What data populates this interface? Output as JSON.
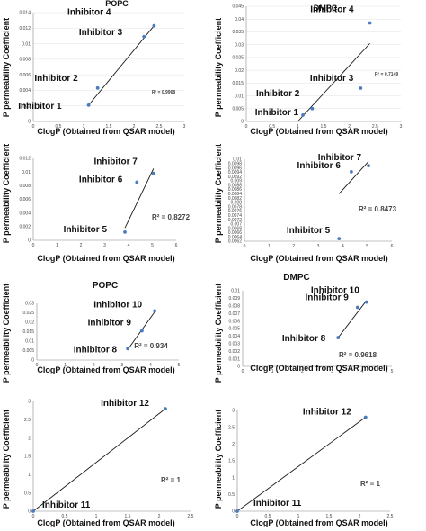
{
  "chart_data": [
    {
      "type": "scatter",
      "title": "POPC",
      "xlabel": "ClogP (Obtained from QSAR model)",
      "ylabel": "P permeability Coefficient",
      "xlim": [
        0,
        3
      ],
      "ylim": [
        0,
        0.014
      ],
      "xticks": [
        "0",
        "0.5",
        "1",
        "1.5",
        "2",
        "2.5",
        "3"
      ],
      "yticks": [
        "0",
        "0.002",
        "0.004",
        "0.006",
        "0.008",
        "0.01",
        "0.012",
        "0.014"
      ],
      "grid": "horizontal",
      "points": [
        {
          "label": "Inhibitor 1",
          "x": 1.1,
          "y": 0.0021
        },
        {
          "label": "Inhibitor 2",
          "x": 1.28,
          "y": 0.0043
        },
        {
          "label": "Inhibitor 3",
          "x": 2.2,
          "y": 0.0109
        },
        {
          "label": "Inhibitor 4",
          "x": 2.4,
          "y": 0.0123
        }
      ],
      "trendline": {
        "x": [
          1.1,
          2.4
        ],
        "y": [
          0.0021,
          0.0123
        ]
      },
      "r2_text": "R² = 0.9968"
    },
    {
      "type": "scatter",
      "title": "DMPC",
      "xlabel": "ClogP (Obtained from QSAR model)",
      "ylabel": "P permeability Coefficient",
      "xlim": [
        0,
        3
      ],
      "ylim": [
        0,
        0.045
      ],
      "xticks": [
        "0",
        "0.5",
        "1",
        "1.5",
        "2",
        "2.5",
        "3"
      ],
      "yticks": [
        "0",
        "0.005",
        "0.01",
        "0.015",
        "0.02",
        "0.025",
        "0.03",
        "0.035",
        "0.04",
        "0.045"
      ],
      "grid": "horizontal",
      "points": [
        {
          "label": "Inhibitor 1",
          "x": 1.1,
          "y": 0.0025
        },
        {
          "label": "Inhibitor 2",
          "x": 1.28,
          "y": 0.005
        },
        {
          "label": "Inhibitor 3",
          "x": 2.22,
          "y": 0.013
        },
        {
          "label": "Inhibitor 4",
          "x": 2.4,
          "y": 0.0385
        }
      ],
      "trendline": {
        "x": [
          1.0,
          2.4
        ],
        "y": [
          0.0,
          0.0305
        ]
      },
      "r2_text": "R² = 0.7149"
    },
    {
      "type": "scatter",
      "title": "",
      "xlabel": "ClogP (Obtained from QSAR model)",
      "ylabel": "P permeability Coefficient",
      "xlim": [
        0,
        6
      ],
      "ylim": [
        0,
        0.012
      ],
      "xticks": [
        "0",
        "1",
        "2",
        "3",
        "4",
        "5",
        "6"
      ],
      "yticks": [
        "0",
        "0.002",
        "0.004",
        "0.006",
        "0.008",
        "0.01",
        "0.012"
      ],
      "grid": "none",
      "points": [
        {
          "label": "Inhibitor 5",
          "x": 3.85,
          "y": 0.0012
        },
        {
          "label": "Inhibitor 6",
          "x": 4.35,
          "y": 0.0085
        },
        {
          "label": "Inhibitor 7",
          "x": 5.05,
          "y": 0.0098
        }
      ],
      "trendline": {
        "x": [
          3.85,
          5.05
        ],
        "y": [
          0.0018,
          0.0105
        ]
      },
      "r2_text": "R² = 0.8272"
    },
    {
      "type": "scatter",
      "title": "",
      "xlabel": "ClogP (Obtained from QSAR model)",
      "ylabel": "P permeability Coefficient",
      "xlim": [
        0,
        6
      ],
      "ylim": [
        0.0062,
        0.01
      ],
      "xticks": [
        "0",
        "1",
        "2",
        "3",
        "4",
        "5",
        "6"
      ],
      "yticks": [
        "0.0062",
        "0.0064",
        "0.0066",
        "0.0068",
        "0.007",
        "0.0072",
        "0.0074",
        "0.0076",
        "0.0078",
        "0.008",
        "0.0082",
        "0.0084",
        "0.0086",
        "0.0088",
        "0.009",
        "0.0092",
        "0.0094",
        "0.0096",
        "0.0098",
        "0.01"
      ],
      "grid": "none",
      "points": [
        {
          "label": "Inhibitor 5",
          "x": 3.85,
          "y": 0.00632
        },
        {
          "label": "Inhibitor 6",
          "x": 4.35,
          "y": 0.00942
        },
        {
          "label": "Inhibitor 7",
          "x": 5.05,
          "y": 0.0097
        }
      ],
      "trendline": {
        "x": [
          3.85,
          5.05
        ],
        "y": [
          0.0084,
          0.0099
        ]
      },
      "r2_text": "R² = 0.8473"
    },
    {
      "type": "scatter",
      "title": "POPC",
      "xlabel": "ClogP (Obtained from QSAR model)",
      "ylabel": "P permeability Coefficient",
      "xlim": [
        0,
        5
      ],
      "ylim": [
        0,
        0.03
      ],
      "xticks": [
        "0",
        "1",
        "2",
        "3",
        "4",
        "5"
      ],
      "yticks": [
        "0",
        "0.005",
        "0.01",
        "0.015",
        "0.02",
        "0.025",
        "0.03"
      ],
      "grid": "none",
      "points": [
        {
          "label": "Inhibitor 8",
          "x": 3.2,
          "y": 0.006
        },
        {
          "label": "Inhibitor 9",
          "x": 3.7,
          "y": 0.0155
        },
        {
          "label": "Inhibitor 10",
          "x": 4.15,
          "y": 0.026
        }
      ],
      "trendline": {
        "x": [
          3.2,
          4.15
        ],
        "y": [
          0.0055,
          0.0255
        ]
      },
      "r2_text": "R² = 0.934"
    },
    {
      "type": "scatter",
      "title": "DMPC",
      "xlabel": "ClogP (Obtained from QSAR model)",
      "ylabel": "P permeability Coefficient",
      "xlim": [
        0,
        5
      ],
      "ylim": [
        0,
        0.01
      ],
      "xticks": [
        "0",
        "1",
        "2",
        "3",
        "4",
        "5"
      ],
      "yticks": [
        "0",
        "0.001",
        "0.002",
        "0.003",
        "0.004",
        "0.005",
        "0.006",
        "0.007",
        "0.008",
        "0.009",
        "0.01"
      ],
      "grid": "none",
      "points": [
        {
          "label": "Inhibitor 8",
          "x": 3.2,
          "y": 0.0038
        },
        {
          "label": "Inhibitor 9",
          "x": 3.85,
          "y": 0.0078
        },
        {
          "label": "Inhibitor 10",
          "x": 4.15,
          "y": 0.0085
        }
      ],
      "trendline": {
        "x": [
          3.2,
          4.15
        ],
        "y": [
          0.0038,
          0.0087
        ]
      },
      "r2_text": "R² = 0.9618"
    },
    {
      "type": "scatter",
      "title": "",
      "xlabel": "ClogP (Obtained from QSAR model)",
      "ylabel": "P permeability Coefficient",
      "xlim": [
        0,
        2.5
      ],
      "ylim": [
        0,
        3
      ],
      "xticks": [
        "0",
        "0.5",
        "1",
        "1.5",
        "2",
        "2.5"
      ],
      "yticks": [
        "0",
        "0.5",
        "1",
        "1.5",
        "2",
        "2.5",
        "3"
      ],
      "grid": "none",
      "points": [
        {
          "label": "Inhibitor 11",
          "x": 0.0,
          "y": 0.0
        },
        {
          "label": "Inhibitor 12",
          "x": 2.1,
          "y": 2.8
        }
      ],
      "trendline": {
        "x": [
          0.0,
          2.1
        ],
        "y": [
          0.0,
          2.8
        ]
      },
      "r2_text": "R² = 1"
    },
    {
      "type": "scatter",
      "title": "",
      "xlabel": "ClogP (Obtained from QSAR model)",
      "ylabel": "P permeability Coefficient",
      "xlim": [
        0,
        2.5
      ],
      "ylim": [
        0,
        3
      ],
      "xticks": [
        "0",
        "0.5",
        "1",
        "1.5",
        "2",
        "2.5"
      ],
      "yticks": [
        "0",
        "0.5",
        "1",
        "1.5",
        "2",
        "2.5",
        "3"
      ],
      "grid": "none",
      "points": [
        {
          "label": "Inhibitor 11",
          "x": 0.0,
          "y": 0.0
        },
        {
          "label": "Inhibitor 12",
          "x": 2.1,
          "y": 2.8
        }
      ],
      "trendline": {
        "x": [
          0.0,
          2.1
        ],
        "y": [
          0.0,
          2.8
        ]
      },
      "r2_text": "R² = 1"
    }
  ]
}
